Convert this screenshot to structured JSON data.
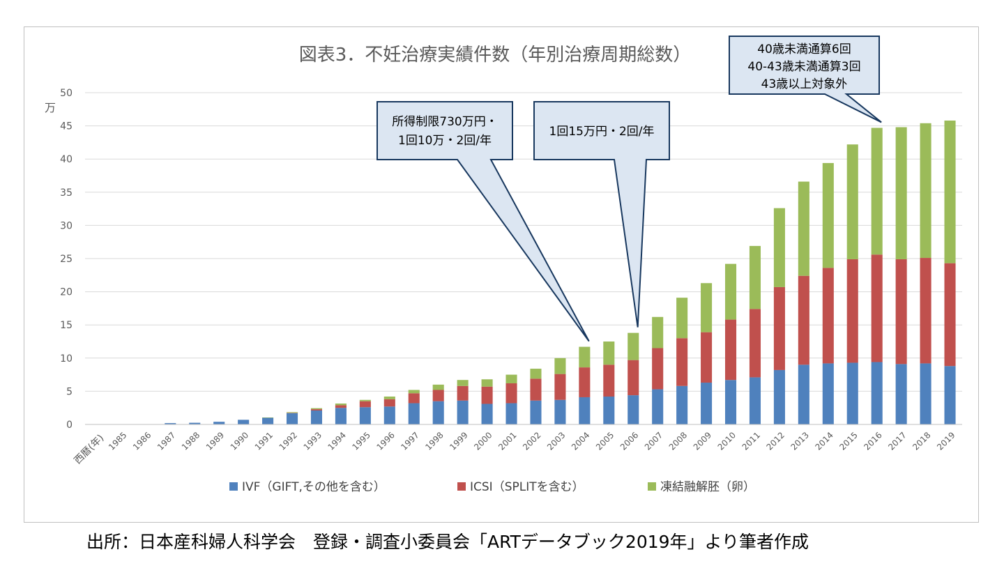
{
  "source_text": "出所：日本産科婦人科学会　登録・調査小委員会「ARTデータブック2019年」より筆者作成",
  "chart_data": {
    "type": "bar",
    "stacked": true,
    "title": "図表3．不妊治療実績件数（年別治療周期総数）",
    "ylabel": "万",
    "xlabel": "西暦(年)",
    "ylim": [
      0,
      50
    ],
    "yticks": [
      0,
      5,
      10,
      15,
      20,
      25,
      30,
      35,
      40,
      45,
      50
    ],
    "grid": true,
    "legend_position": "bottom",
    "categories": [
      "1985",
      "1986",
      "1987",
      "1988",
      "1989",
      "1990",
      "1991",
      "1992",
      "1993",
      "1994",
      "1995",
      "1996",
      "1997",
      "1998",
      "1999",
      "2000",
      "2001",
      "2002",
      "2003",
      "2004",
      "2005",
      "2006",
      "2007",
      "2008",
      "2009",
      "2010",
      "2011",
      "2012",
      "2013",
      "2014",
      "2015",
      "2016",
      "2017",
      "2018",
      "2019"
    ],
    "series": [
      {
        "name": "IVF（GIFT,その他を含む）",
        "color": "#4f81bd",
        "values": [
          0.0,
          0.05,
          0.2,
          0.25,
          0.4,
          0.7,
          1.0,
          1.7,
          2.1,
          2.5,
          2.6,
          2.7,
          3.2,
          3.5,
          3.6,
          3.1,
          3.2,
          3.6,
          3.7,
          4.1,
          4.2,
          4.4,
          5.3,
          5.8,
          6.3,
          6.7,
          7.1,
          8.2,
          9.0,
          9.2,
          9.3,
          9.4,
          9.1,
          9.2,
          8.8
        ]
      },
      {
        "name": "ICSI（SPLITを含む）",
        "color": "#c0504d",
        "values": [
          0,
          0,
          0,
          0,
          0,
          0,
          0,
          0.05,
          0.2,
          0.4,
          0.9,
          1.1,
          1.5,
          1.7,
          2.2,
          2.6,
          3.0,
          3.3,
          3.9,
          4.5,
          4.8,
          5.3,
          6.2,
          7.2,
          7.6,
          9.1,
          10.3,
          12.5,
          13.4,
          14.4,
          15.6,
          16.2,
          15.8,
          15.9,
          15.5
        ]
      },
      {
        "name": "凍結融解胚（卵）",
        "color": "#9bbb59",
        "values": [
          0,
          0,
          0,
          0,
          0,
          0,
          0.05,
          0.1,
          0.15,
          0.25,
          0.2,
          0.4,
          0.5,
          0.8,
          0.9,
          1.1,
          1.3,
          1.5,
          2.4,
          3.1,
          3.5,
          4.1,
          4.7,
          6.1,
          7.4,
          8.4,
          9.5,
          11.9,
          14.2,
          15.8,
          17.3,
          19.1,
          19.9,
          20.3,
          21.5
        ]
      }
    ],
    "annotations": [
      {
        "name": "callout-2004",
        "lines": [
          "所得制限730万円・",
          "1回10万・2回/年"
        ],
        "points_to": "2004"
      },
      {
        "name": "callout-2006",
        "lines": [
          "1回15万円・2回/年"
        ],
        "points_to": "2006"
      },
      {
        "name": "callout-2016",
        "lines": [
          "40歳未満通算6回",
          "40-43歳未満通算3回",
          "43歳以上対象外"
        ],
        "points_to": "2016"
      }
    ]
  }
}
